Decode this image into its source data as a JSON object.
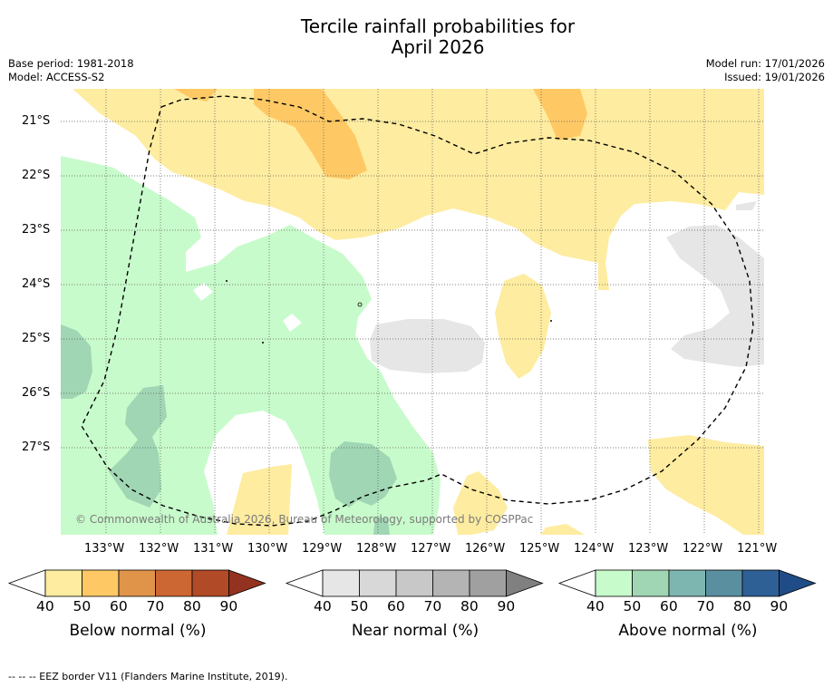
{
  "title_line1": "Tercile rainfall probabilities for",
  "title_line2": "April 2026",
  "base_period": "Base period: 1981-2018",
  "model": "Model: ACCESS-S2",
  "model_run": "Model run: 17/01/2026",
  "issued": "Issued: 19/01/2026",
  "latitudes": [
    "21°S",
    "22°S",
    "23°S",
    "24°S",
    "25°S",
    "26°S",
    "27°S"
  ],
  "longitudes": [
    "133°W",
    "132°W",
    "131°W",
    "130°W",
    "129°W",
    "128°W",
    "127°W",
    "126°W",
    "125°W",
    "124°W",
    "123°W",
    "122°W",
    "121°W"
  ],
  "copyright": "© Commonwealth of Australia 2026, Bureau of Meteorology, supported by COSPPac",
  "colorbars": [
    {
      "label": "Below normal (%)",
      "ticks": [
        "40",
        "50",
        "60",
        "70",
        "80",
        "90"
      ],
      "colors": [
        "#ffffff",
        "#feeca0",
        "#fec965",
        "#e0944a",
        "#cc6633",
        "#b04a27",
        "#93331f"
      ]
    },
    {
      "label": "Near normal (%)",
      "ticks": [
        "40",
        "50",
        "60",
        "70",
        "80",
        "90"
      ],
      "colors": [
        "#ffffff",
        "#e6e6e6",
        "#d8d8d8",
        "#c8c8c8",
        "#b4b4b4",
        "#a0a0a0",
        "#808080"
      ]
    },
    {
      "label": "Above normal (%)",
      "ticks": [
        "40",
        "50",
        "60",
        "70",
        "80",
        "90"
      ],
      "colors": [
        "#ffffff",
        "#c8fbcb",
        "#a0d6b4",
        "#7db6b0",
        "#5a8fa0",
        "#2e6096",
        "#1f4c86"
      ]
    }
  ],
  "legend_note": "--  --  -- EEZ border V11 (Flanders Marine Institute, 2019)."
}
